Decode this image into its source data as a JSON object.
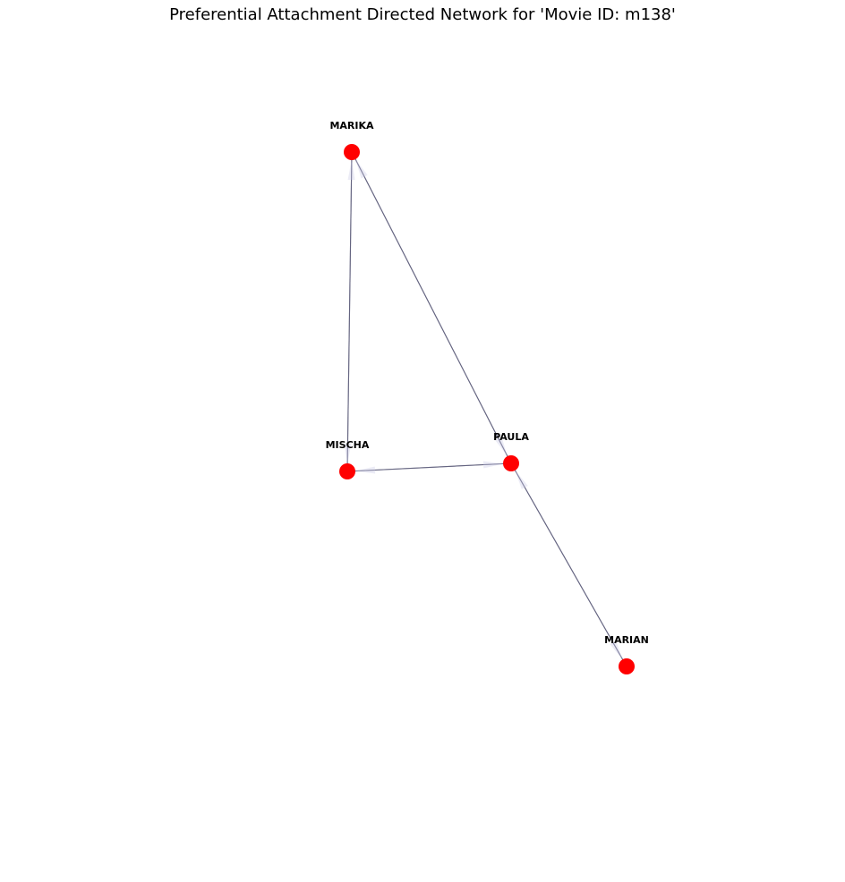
{
  "title": "Preferential Attachment Directed Network for 'Movie ID: m138'",
  "colors": {
    "node_fill": "#ff0000",
    "edge_stroke": "#4e4e6e",
    "arrow_fill": "#c8c8e6",
    "label": "#000000",
    "background": "#ffffff"
  },
  "nodes": [
    {
      "id": "MARIKA",
      "label": "MARIKA"
    },
    {
      "id": "MISCHA",
      "label": "MISCHA"
    },
    {
      "id": "PAULA",
      "label": "PAULA"
    },
    {
      "id": "MARIAN",
      "label": "MARIAN"
    }
  ],
  "edges": [
    {
      "source": "MARIKA",
      "target": "MISCHA"
    },
    {
      "source": "MISCHA",
      "target": "MARIKA"
    },
    {
      "source": "MARIKA",
      "target": "PAULA"
    },
    {
      "source": "PAULA",
      "target": "MARIKA"
    },
    {
      "source": "MISCHA",
      "target": "PAULA"
    },
    {
      "source": "PAULA",
      "target": "MISCHA"
    },
    {
      "source": "PAULA",
      "target": "MARIAN"
    },
    {
      "source": "MARIAN",
      "target": "PAULA"
    }
  ]
}
